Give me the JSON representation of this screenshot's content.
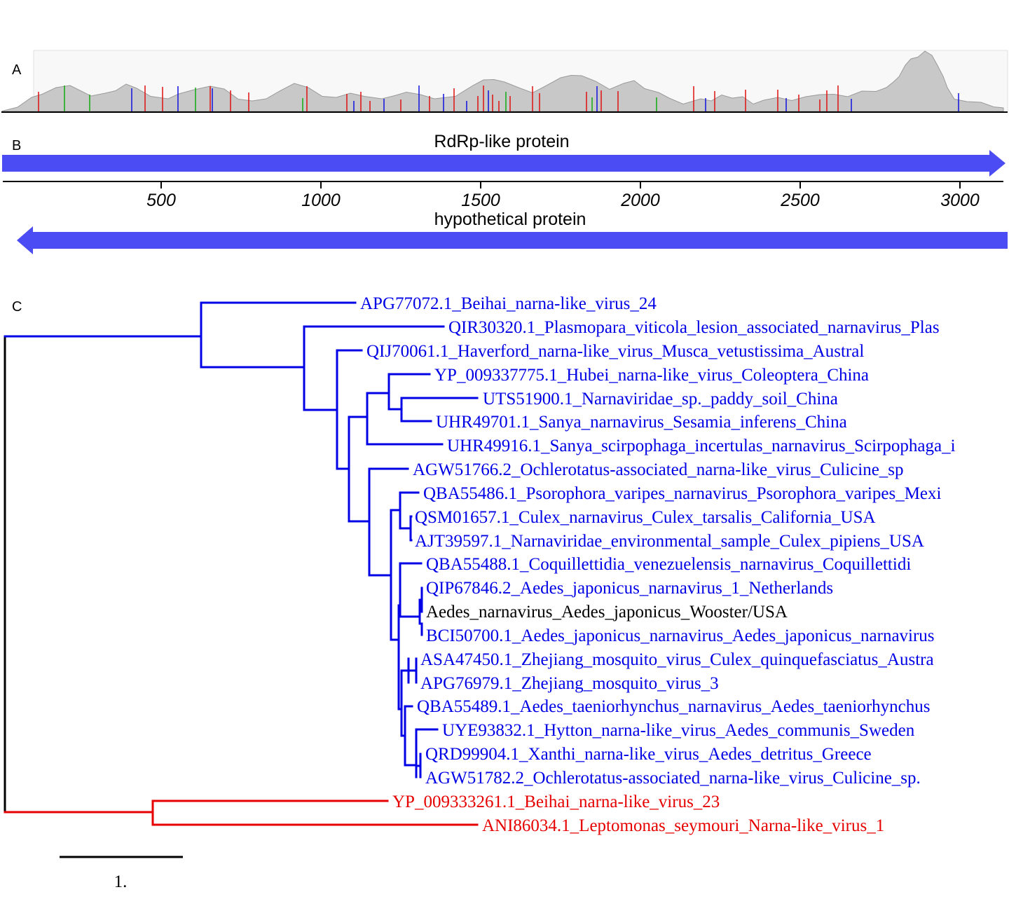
{
  "panels": {
    "a": "A",
    "b": "B",
    "c": "C"
  },
  "colors": {
    "blue": "#0000e6",
    "red": "#e60000",
    "black": "#000000",
    "coverage_fill": "#c8c8c8",
    "arrow": "#4c4cf5"
  },
  "genes": {
    "forward": "RdRp-like protein",
    "reverse": "hypothetical protein"
  },
  "axis": {
    "ticks": [
      "500",
      "1000",
      "1500",
      "2000",
      "2500",
      "3000"
    ]
  },
  "scale_bar": {
    "label": "1."
  },
  "leaves": [
    {
      "name": "APG77072.1_Beihai_narna-like_virus_24",
      "color": "blue"
    },
    {
      "name": "QIR30320.1_Plasmopara_viticola_lesion_associated_narnavirus_Plas",
      "color": "blue"
    },
    {
      "name": "QIJ70061.1_Haverford_narna-like_virus_Musca_vetustissima_Austral",
      "color": "blue"
    },
    {
      "name": "YP_009337775.1_Hubei_narna-like_virus_Coleoptera_China",
      "color": "blue"
    },
    {
      "name": "UTS51900.1_Narnaviridae_sp._paddy_soil_China",
      "color": "blue"
    },
    {
      "name": "UHR49701.1_Sanya_narnavirus_Sesamia_inferens_China",
      "color": "blue"
    },
    {
      "name": "UHR49916.1_Sanya_scirpophaga_incertulas_narnavirus_Scirpophaga_i",
      "color": "blue"
    },
    {
      "name": "AGW51766.2_Ochlerotatus-associated_narna-like_virus_Culicine_sp",
      "color": "blue"
    },
    {
      "name": "QBA55486.1_Psorophora_varipes_narnavirus_Psorophora_varipes_Mexi",
      "color": "blue"
    },
    {
      "name": "QSM01657.1_Culex_narnavirus_Culex_tarsalis_California_USA",
      "color": "blue"
    },
    {
      "name": "AJT39597.1_Narnaviridae_environmental_sample_Culex_pipiens_USA",
      "color": "blue"
    },
    {
      "name": "QBA55488.1_Coquillettidia_venezuelensis_narnavirus_Coquillettidi",
      "color": "blue"
    },
    {
      "name": "QIP67846.2_Aedes_japonicus_narnavirus_1_Netherlands",
      "color": "blue"
    },
    {
      "name": "Aedes_narnavirus_Aedes_japonicus_Wooster/USA",
      "color": "black"
    },
    {
      "name": "BCI50700.1_Aedes_japonicus_narnavirus_Aedes_japonicus_narnavirus",
      "color": "blue"
    },
    {
      "name": "ASA47450.1_Zhejiang_mosquito_virus_Culex_quinquefasciatus_Austra",
      "color": "blue"
    },
    {
      "name": "APG76979.1_Zhejiang_mosquito_virus_3",
      "color": "blue"
    },
    {
      "name": "QBA55489.1_Aedes_taeniorhynchus_narnavirus_Aedes_taeniorhynchus",
      "color": "blue"
    },
    {
      "name": "UYE93832.1_Hytton_narna-like_virus_Aedes_communis_Sweden",
      "color": "blue"
    },
    {
      "name": "QRD99904.1_Xanthi_narna-like_virus_Aedes_detritus_Greece",
      "color": "blue"
    },
    {
      "name": "AGW51782.2_Ochlerotatus-associated_narna-like_virus_Culicine_sp.",
      "color": "blue"
    },
    {
      "name": "YP_009333261.1_Beihai_narna-like_virus_23",
      "color": "red"
    },
    {
      "name": "ANI86034.1_Leptomonas_seymouri_Narna-like_virus_1",
      "color": "red"
    }
  ]
}
